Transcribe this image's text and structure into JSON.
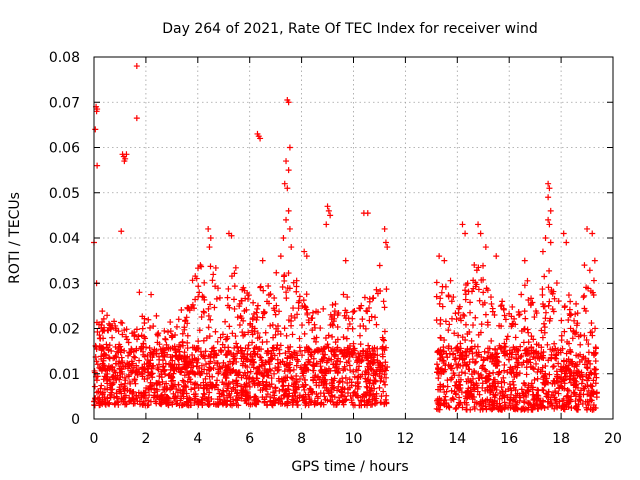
{
  "chart_data": {
    "type": "scatter",
    "title": "Day 264 of 2021, Rate Of TEC Index for receiver wind",
    "xlabel": "GPS time / hours",
    "ylabel": "ROTI / TECUs",
    "xlim": [
      0,
      20
    ],
    "ylim": [
      0,
      0.08
    ],
    "x_ticks": [
      0,
      2,
      4,
      6,
      8,
      10,
      12,
      14,
      16,
      18,
      20
    ],
    "y_ticks": [
      0,
      0.01,
      0.02,
      0.03,
      0.04,
      0.05,
      0.06,
      0.07,
      0.08
    ],
    "x_tick_labels": [
      "0",
      "2",
      "4",
      "6",
      "8",
      "10",
      "12",
      "14",
      "16",
      "18",
      "20"
    ],
    "y_tick_labels": [
      "0",
      "0.01",
      "0.02",
      "0.03",
      "0.04",
      "0.05",
      "0.06",
      "0.07",
      "0.08"
    ],
    "grid": true,
    "marker": "+",
    "color": "#ff0000",
    "segments": [
      {
        "x_start": 0.0,
        "x_end": 11.3,
        "base_min": 0.003,
        "base_max": 0.025
      },
      {
        "x_start": 13.2,
        "x_end": 19.4,
        "base_min": 0.002,
        "base_max": 0.025
      }
    ],
    "envelope": [
      [
        0.0,
        0.024
      ],
      [
        0.5,
        0.02
      ],
      [
        1.0,
        0.022
      ],
      [
        1.5,
        0.018
      ],
      [
        2.0,
        0.02
      ],
      [
        2.5,
        0.018
      ],
      [
        3.0,
        0.02
      ],
      [
        3.5,
        0.022
      ],
      [
        4.0,
        0.03
      ],
      [
        4.5,
        0.032
      ],
      [
        5.0,
        0.026
      ],
      [
        5.5,
        0.03
      ],
      [
        6.0,
        0.024
      ],
      [
        6.5,
        0.026
      ],
      [
        7.0,
        0.03
      ],
      [
        7.5,
        0.034
      ],
      [
        8.0,
        0.026
      ],
      [
        8.5,
        0.022
      ],
      [
        9.0,
        0.022
      ],
      [
        9.5,
        0.024
      ],
      [
        10.0,
        0.024
      ],
      [
        10.5,
        0.026
      ],
      [
        11.0,
        0.03
      ],
      [
        11.3,
        0.03
      ],
      [
        13.2,
        0.03
      ],
      [
        13.5,
        0.03
      ],
      [
        14.0,
        0.024
      ],
      [
        14.5,
        0.03
      ],
      [
        15.0,
        0.03
      ],
      [
        15.5,
        0.026
      ],
      [
        16.0,
        0.024
      ],
      [
        16.5,
        0.026
      ],
      [
        17.0,
        0.028
      ],
      [
        17.5,
        0.034
      ],
      [
        18.0,
        0.026
      ],
      [
        18.5,
        0.024
      ],
      [
        19.0,
        0.03
      ],
      [
        19.4,
        0.03
      ]
    ],
    "highlights": [
      {
        "x": 0.08,
        "y": 0.069
      },
      {
        "x": 0.1,
        "y": 0.068
      },
      {
        "x": 0.12,
        "y": 0.0685
      },
      {
        "x": 0.05,
        "y": 0.064
      },
      {
        "x": 0.12,
        "y": 0.056
      },
      {
        "x": 0.0,
        "y": 0.039
      },
      {
        "x": 0.1,
        "y": 0.03
      },
      {
        "x": 1.05,
        "y": 0.0415
      },
      {
        "x": 1.1,
        "y": 0.0585
      },
      {
        "x": 1.15,
        "y": 0.058
      },
      {
        "x": 1.2,
        "y": 0.0575
      },
      {
        "x": 1.25,
        "y": 0.0585
      },
      {
        "x": 1.17,
        "y": 0.057
      },
      {
        "x": 1.65,
        "y": 0.078
      },
      {
        "x": 1.65,
        "y": 0.0665
      },
      {
        "x": 1.75,
        "y": 0.028
      },
      {
        "x": 2.2,
        "y": 0.0275
      },
      {
        "x": 4.4,
        "y": 0.042
      },
      {
        "x": 4.5,
        "y": 0.04
      },
      {
        "x": 4.45,
        "y": 0.038
      },
      {
        "x": 5.2,
        "y": 0.041
      },
      {
        "x": 5.3,
        "y": 0.0405
      },
      {
        "x": 4.1,
        "y": 0.034
      },
      {
        "x": 6.3,
        "y": 0.063
      },
      {
        "x": 6.35,
        "y": 0.0625
      },
      {
        "x": 6.4,
        "y": 0.062
      },
      {
        "x": 6.5,
        "y": 0.035
      },
      {
        "x": 7.45,
        "y": 0.0705
      },
      {
        "x": 7.5,
        "y": 0.07
      },
      {
        "x": 7.55,
        "y": 0.06
      },
      {
        "x": 7.4,
        "y": 0.057
      },
      {
        "x": 7.5,
        "y": 0.055
      },
      {
        "x": 7.35,
        "y": 0.052
      },
      {
        "x": 7.45,
        "y": 0.051
      },
      {
        "x": 7.5,
        "y": 0.046
      },
      {
        "x": 7.4,
        "y": 0.044
      },
      {
        "x": 7.55,
        "y": 0.042
      },
      {
        "x": 7.3,
        "y": 0.04
      },
      {
        "x": 7.6,
        "y": 0.038
      },
      {
        "x": 7.2,
        "y": 0.036
      },
      {
        "x": 8.1,
        "y": 0.037
      },
      {
        "x": 8.2,
        "y": 0.036
      },
      {
        "x": 9.0,
        "y": 0.047
      },
      {
        "x": 9.05,
        "y": 0.046
      },
      {
        "x": 9.1,
        "y": 0.045
      },
      {
        "x": 8.95,
        "y": 0.043
      },
      {
        "x": 9.7,
        "y": 0.035
      },
      {
        "x": 10.4,
        "y": 0.0455
      },
      {
        "x": 10.55,
        "y": 0.0455
      },
      {
        "x": 11.2,
        "y": 0.042
      },
      {
        "x": 11.25,
        "y": 0.039
      },
      {
        "x": 11.3,
        "y": 0.038
      },
      {
        "x": 13.3,
        "y": 0.036
      },
      {
        "x": 13.5,
        "y": 0.035
      },
      {
        "x": 14.2,
        "y": 0.043
      },
      {
        "x": 14.3,
        "y": 0.041
      },
      {
        "x": 14.8,
        "y": 0.043
      },
      {
        "x": 14.9,
        "y": 0.041
      },
      {
        "x": 15.1,
        "y": 0.038
      },
      {
        "x": 15.5,
        "y": 0.036
      },
      {
        "x": 16.6,
        "y": 0.035
      },
      {
        "x": 17.5,
        "y": 0.052
      },
      {
        "x": 17.55,
        "y": 0.051
      },
      {
        "x": 17.5,
        "y": 0.049
      },
      {
        "x": 17.6,
        "y": 0.046
      },
      {
        "x": 17.5,
        "y": 0.044
      },
      {
        "x": 17.55,
        "y": 0.043
      },
      {
        "x": 17.4,
        "y": 0.04
      },
      {
        "x": 17.6,
        "y": 0.039
      },
      {
        "x": 17.3,
        "y": 0.037
      },
      {
        "x": 18.1,
        "y": 0.041
      },
      {
        "x": 18.2,
        "y": 0.039
      },
      {
        "x": 19.0,
        "y": 0.042
      },
      {
        "x": 19.2,
        "y": 0.041
      },
      {
        "x": 19.3,
        "y": 0.035
      },
      {
        "x": 18.9,
        "y": 0.034
      }
    ]
  }
}
